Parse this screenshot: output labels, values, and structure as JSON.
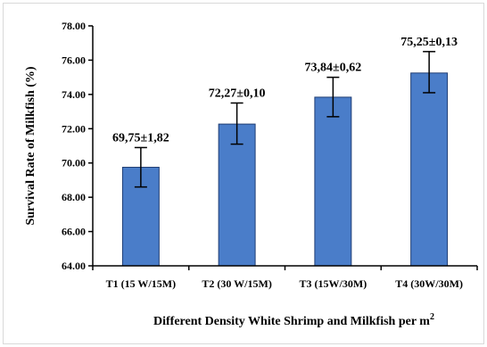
{
  "chart_data": {
    "type": "bar",
    "title": "",
    "xlabel": "Different Density White Shrimp and Milkfish per m",
    "xlabel_superscript": "2",
    "ylabel": "Survival Rate of Milkfish (%)",
    "ylim": [
      64,
      78
    ],
    "yticks": [
      "64.00",
      "66.00",
      "68.00",
      "70.00",
      "72.00",
      "74.00",
      "76.00",
      "78.00"
    ],
    "ytick_values": [
      64,
      66,
      68,
      70,
      72,
      74,
      76,
      78
    ],
    "categories": [
      "T1 (15 W/15M)",
      "T2 (30 W/15M)",
      "T3 (15W/30M)",
      "T4 (30W/30M)"
    ],
    "values": [
      69.75,
      72.27,
      73.84,
      75.25
    ],
    "error_low": [
      68.6,
      71.1,
      72.7,
      74.1
    ],
    "error_high": [
      70.9,
      73.5,
      75.0,
      76.5
    ],
    "data_labels": [
      "69,75±1,82",
      "72,27±0,10",
      "73,84±0,62",
      "75,25±0,13"
    ],
    "grid": false,
    "legend": "none",
    "bar_color": "#4a7dc9"
  }
}
